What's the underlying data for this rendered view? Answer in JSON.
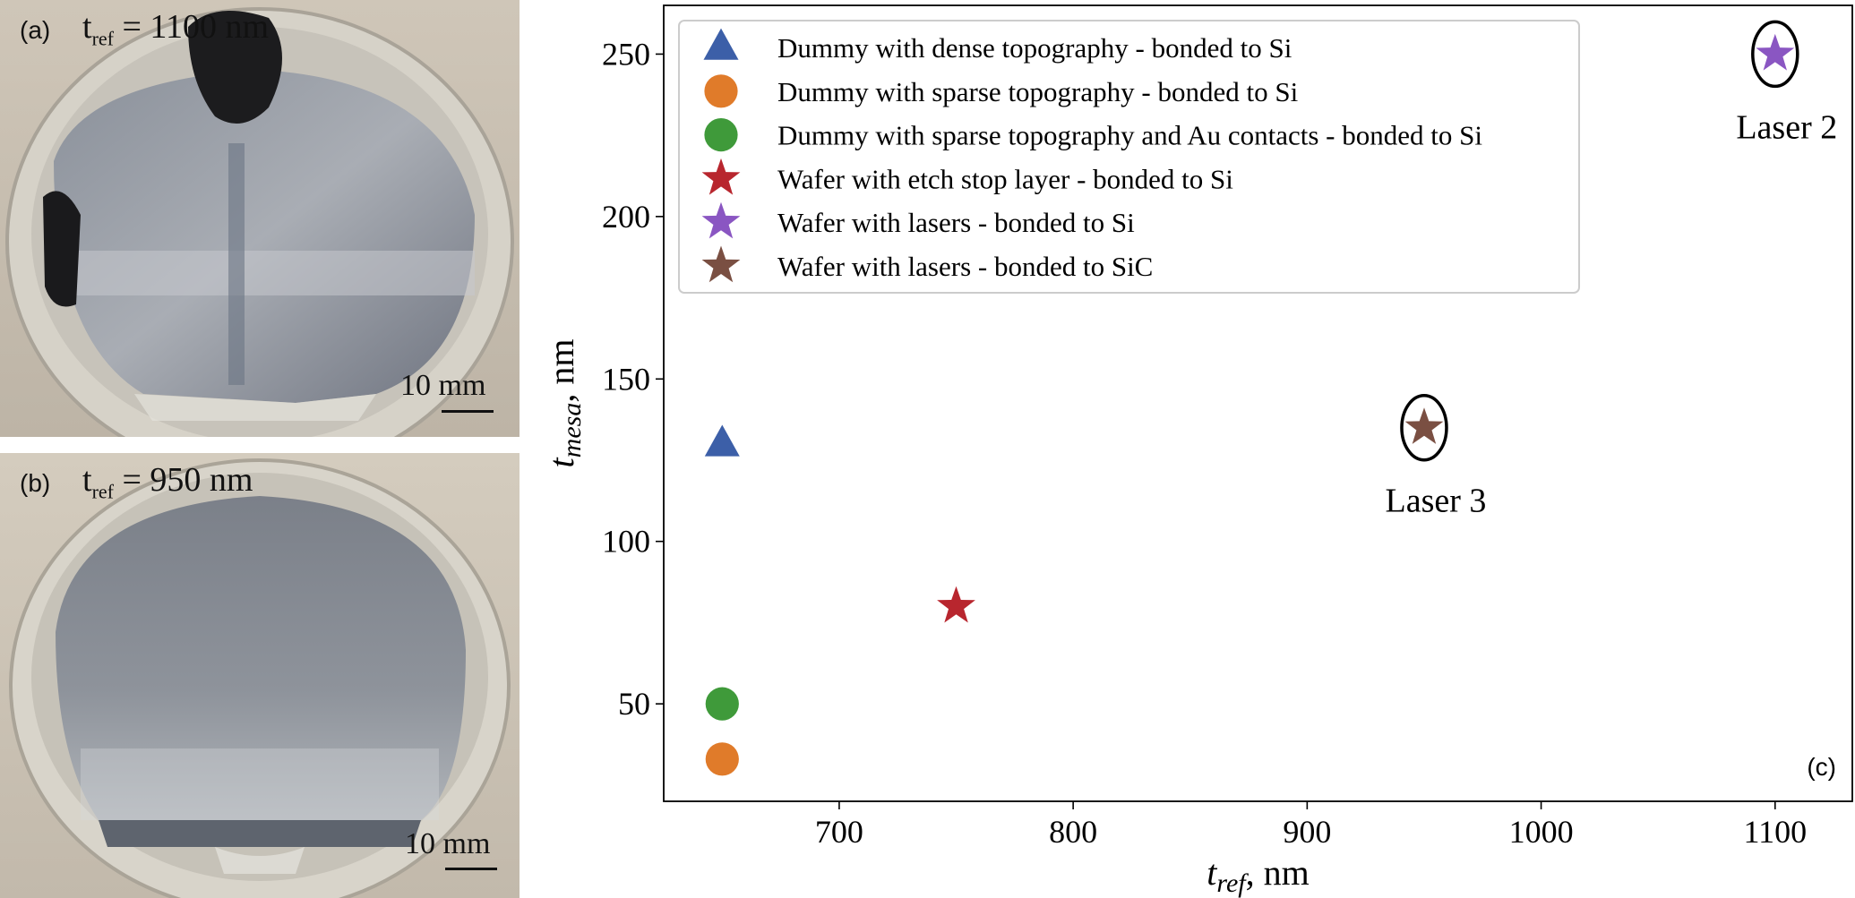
{
  "panel_a": {
    "tag": "(a)",
    "tref_prefix": "t",
    "tref_sub": "ref",
    "tref_value": " = 1100 nm",
    "scale_label": "10 mm"
  },
  "panel_b": {
    "tag": "(b)",
    "tref_prefix": "t",
    "tref_sub": "ref",
    "tref_value": " = 950 nm",
    "scale_label": "10 mm"
  },
  "colors": {
    "blue": "#3c5fa8",
    "orange": "#e07b2a",
    "green": "#3f9a3a",
    "red": "#b8262e",
    "purple": "#8a56c2",
    "brown": "#7a4f42"
  },
  "chart_data": {
    "type": "scatter",
    "panel_tag": "(c)",
    "xlabel_main": "t",
    "xlabel_sub": "ref",
    "xlabel_unit": ", nm",
    "ylabel_main": "t",
    "ylabel_sub": "mesa",
    "ylabel_unit": ", nm",
    "xlim": [
      625,
      1133
    ],
    "ylim": [
      20,
      265
    ],
    "xticks": [
      700,
      800,
      900,
      1000,
      1100
    ],
    "yticks": [
      50,
      100,
      150,
      200,
      250
    ],
    "grid": false,
    "legend_position": "top-left",
    "series": [
      {
        "name": "Dummy with dense topography - bonded to Si",
        "marker": "triangle",
        "color": "#3c5fa8",
        "points": [
          {
            "x": 650,
            "y": 130
          }
        ]
      },
      {
        "name": "Dummy with sparse topography - bonded to Si",
        "marker": "circle",
        "color": "#e07b2a",
        "points": [
          {
            "x": 650,
            "y": 33
          }
        ]
      },
      {
        "name": "Dummy with sparse topography and Au contacts - bonded to Si",
        "marker": "circle",
        "color": "#3f9a3a",
        "points": [
          {
            "x": 650,
            "y": 50
          }
        ]
      },
      {
        "name": "Wafer with etch stop layer - bonded to Si",
        "marker": "star",
        "color": "#b8262e",
        "points": [
          {
            "x": 750,
            "y": 80
          }
        ]
      },
      {
        "name": "Wafer with lasers - bonded to Si",
        "marker": "star",
        "color": "#8a56c2",
        "points": [
          {
            "x": 1100,
            "y": 250
          }
        ]
      },
      {
        "name": "Wafer with lasers - bonded to SiC",
        "marker": "star",
        "color": "#7a4f42",
        "points": [
          {
            "x": 950,
            "y": 135
          }
        ]
      }
    ],
    "annotations": [
      {
        "text": "Laser 2",
        "x": 1100,
        "y": 250
      },
      {
        "text": "Laser 3",
        "x": 950,
        "y": 135
      }
    ]
  }
}
